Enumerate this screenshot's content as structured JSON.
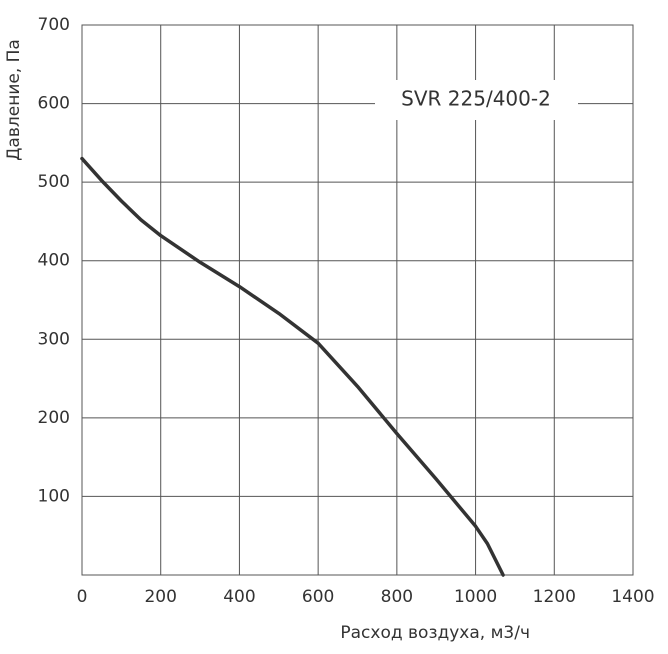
{
  "chart_data": {
    "type": "line",
    "annotation": "SVR 225/400-2",
    "xlabel": "Расход воздуха, м3/ч",
    "ylabel": "Давление, Па",
    "x": [
      0,
      50,
      100,
      150,
      200,
      300,
      400,
      500,
      600,
      700,
      800,
      900,
      1000,
      1030,
      1070
    ],
    "series": [
      {
        "color": "#333333",
        "values": [
          530,
          502,
          476,
          452,
          432,
          398,
          367,
          333,
          295,
          240,
          180,
          122,
          62,
          40,
          0
        ]
      }
    ],
    "xlim": [
      0,
      1400
    ],
    "xticks": [
      0,
      200,
      400,
      600,
      800,
      1000,
      1200,
      1400
    ],
    "ylim": [
      0,
      700
    ],
    "yticks": [
      100,
      200,
      300,
      400,
      500,
      600,
      700
    ],
    "grid": true
  }
}
